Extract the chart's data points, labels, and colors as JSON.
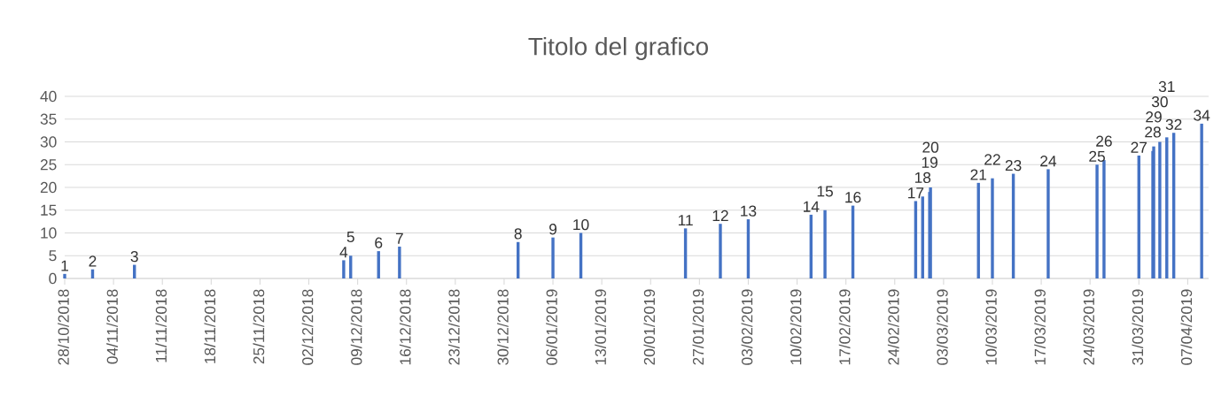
{
  "chart_data": {
    "type": "bar",
    "title": "Titolo del grafico",
    "x": [
      "2018-10-28",
      "2018-11-01",
      "2018-11-07",
      "2018-12-07",
      "2018-12-08",
      "2018-12-12",
      "2018-12-15",
      "2019-01-01",
      "2019-01-06",
      "2019-01-10",
      "2019-01-25",
      "2019-01-30",
      "2019-02-03",
      "2019-02-12",
      "2019-02-14",
      "2019-02-18",
      "2019-02-27",
      "2019-02-28",
      "2019-03-01T00:00",
      "2019-03-01T03:00",
      "2019-03-08",
      "2019-03-10",
      "2019-03-13",
      "2019-03-18",
      "2019-03-25",
      "2019-03-26",
      "2019-03-31",
      "2019-04-02T00:00",
      "2019-04-02T03:00",
      "2019-04-03",
      "2019-04-04",
      "2019-04-05",
      "2019-04-09"
    ],
    "values": [
      1,
      2,
      3,
      4,
      5,
      6,
      7,
      8,
      9,
      10,
      11,
      12,
      13,
      14,
      15,
      16,
      17,
      18,
      19,
      20,
      21,
      22,
      23,
      24,
      25,
      26,
      27,
      28,
      29,
      30,
      31,
      32,
      34
    ],
    "color": "#4472c4",
    "data_labels": true,
    "grid": "y",
    "xlim": [
      "2018-10-28",
      "2019-04-10"
    ],
    "xticks": [
      {
        "value": "2018-10-28",
        "label": "28/10/2018"
      },
      {
        "value": "2018-11-04",
        "label": "04/11/2018"
      },
      {
        "value": "2018-11-11",
        "label": "11/11/2018"
      },
      {
        "value": "2018-11-18",
        "label": "18/11/2018"
      },
      {
        "value": "2018-11-25",
        "label": "25/11/2018"
      },
      {
        "value": "2018-12-02",
        "label": "02/12/2018"
      },
      {
        "value": "2018-12-09",
        "label": "09/12/2018"
      },
      {
        "value": "2018-12-16",
        "label": "16/12/2018"
      },
      {
        "value": "2018-12-23",
        "label": "23/12/2018"
      },
      {
        "value": "2018-12-30",
        "label": "30/12/2018"
      },
      {
        "value": "2019-01-06",
        "label": "06/01/2019"
      },
      {
        "value": "2019-01-13",
        "label": "13/01/2019"
      },
      {
        "value": "2019-01-20",
        "label": "20/01/2019"
      },
      {
        "value": "2019-01-27",
        "label": "27/01/2019"
      },
      {
        "value": "2019-02-03",
        "label": "03/02/2019"
      },
      {
        "value": "2019-02-10",
        "label": "10/02/2019"
      },
      {
        "value": "2019-02-17",
        "label": "17/02/2019"
      },
      {
        "value": "2019-02-24",
        "label": "24/02/2019"
      },
      {
        "value": "2019-03-03",
        "label": "03/03/2019"
      },
      {
        "value": "2019-03-10",
        "label": "10/03/2019"
      },
      {
        "value": "2019-03-17",
        "label": "17/03/2019"
      },
      {
        "value": "2019-03-24",
        "label": "24/03/2019"
      },
      {
        "value": "2019-03-31",
        "label": "31/03/2019"
      },
      {
        "value": "2019-04-07",
        "label": "07/04/2019"
      }
    ],
    "ylim": [
      0,
      40
    ],
    "yticks": [
      0,
      5,
      10,
      15,
      20,
      25,
      30,
      35,
      40
    ]
  }
}
